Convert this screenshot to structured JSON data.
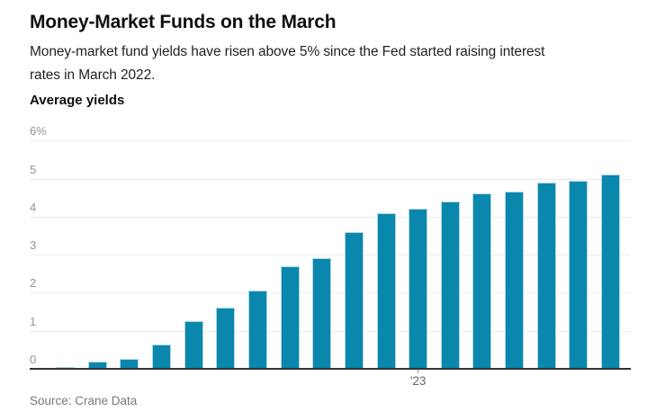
{
  "page": {
    "title": "Money-Market Funds on the March",
    "subtitle_line1": "Money-market fund yields have risen above 5% since the Fed started raising interest",
    "subtitle_line2": "rates in March 2022.",
    "source": "Source: Crane Data"
  },
  "chart_data": {
    "type": "bar",
    "title": "Average yields",
    "unit": "percent",
    "values": [
      0.05,
      0.2,
      0.25,
      0.65,
      1.25,
      1.6,
      2.05,
      2.7,
      2.9,
      3.6,
      4.1,
      4.2,
      4.4,
      4.6,
      4.65,
      4.9,
      4.95,
      5.1
    ],
    "ylim": [
      0,
      6
    ],
    "y_ticks": [
      {
        "value": 6,
        "label": "6%"
      },
      {
        "value": 5,
        "label": "5"
      },
      {
        "value": 4,
        "label": "4"
      },
      {
        "value": 3,
        "label": "3"
      },
      {
        "value": 2,
        "label": "2"
      },
      {
        "value": 1,
        "label": "1"
      },
      {
        "value": 0,
        "label": "0"
      }
    ],
    "x_tick": {
      "bar_index": 11,
      "label": "'23"
    },
    "grid": true,
    "colors": {
      "bar_fill": "#0987ad",
      "bar_edge": "#aed7e4",
      "gridline": "#ececec",
      "baseline": "#333333",
      "y_label": "#8f959a",
      "tick_mark": "#9aa0a3"
    }
  }
}
